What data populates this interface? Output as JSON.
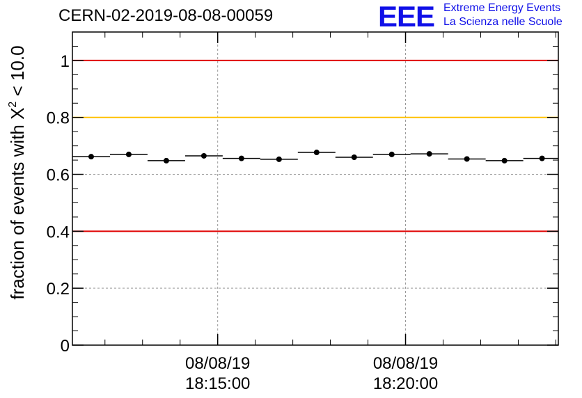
{
  "header": {
    "title": "CERN-02-2019-08-08-00059",
    "logo_text": "EEE",
    "logo_line1": "Extreme Energy Events",
    "logo_line2": "La Scienza nelle Scuole"
  },
  "colors": {
    "logo": "#1010e8",
    "threshold_red": "#e00000",
    "threshold_yellow": "#ffc000",
    "grid": "#999999",
    "data": "#000000"
  },
  "chart_data": {
    "type": "scatter",
    "ylabel_main": "fraction of events with X",
    "ylabel_sup": "2",
    "ylabel_tail": " < 10.0",
    "ylim": [
      0,
      1.1
    ],
    "yticks": [
      {
        "value": 0,
        "label": "0"
      },
      {
        "value": 0.2,
        "label": "0.2"
      },
      {
        "value": 0.4,
        "label": "0.4"
      },
      {
        "value": 0.6,
        "label": "0.6"
      },
      {
        "value": 0.8,
        "label": "0.8"
      },
      {
        "value": 1.0,
        "label": "1"
      }
    ],
    "xlim": [
      "18:11:08",
      "18:24:04"
    ],
    "xticks": [
      {
        "time": "18:15:00",
        "date": "08/08/19"
      },
      {
        "time": "18:20:00",
        "date": "08/08/19"
      }
    ],
    "bin_width_seconds": 60,
    "grid": true,
    "reference_lines": [
      {
        "y": 1.0,
        "color": "#e00000"
      },
      {
        "y": 0.8,
        "color": "#ffc000"
      },
      {
        "y": 0.4,
        "color": "#e00000"
      }
    ],
    "series": [
      {
        "points": [
          {
            "x": "18:11:38",
            "y": 0.662
          },
          {
            "x": "18:12:38",
            "y": 0.67
          },
          {
            "x": "18:13:38",
            "y": 0.648
          },
          {
            "x": "18:14:38",
            "y": 0.665
          },
          {
            "x": "18:15:38",
            "y": 0.656
          },
          {
            "x": "18:16:38",
            "y": 0.653
          },
          {
            "x": "18:17:38",
            "y": 0.677
          },
          {
            "x": "18:18:38",
            "y": 0.66
          },
          {
            "x": "18:19:38",
            "y": 0.67
          },
          {
            "x": "18:20:38",
            "y": 0.672
          },
          {
            "x": "18:21:38",
            "y": 0.654
          },
          {
            "x": "18:22:38",
            "y": 0.648
          },
          {
            "x": "18:23:38",
            "y": 0.656
          }
        ]
      }
    ]
  }
}
